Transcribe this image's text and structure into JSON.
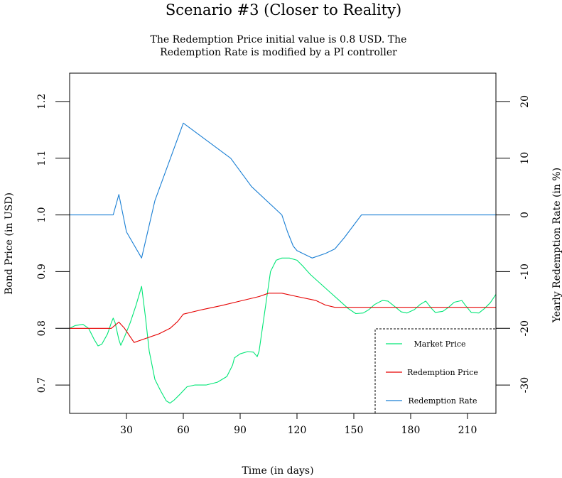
{
  "chart_data": {
    "type": "line",
    "title": "Scenario #3 (Closer to Reality)",
    "subtitle_lines": [
      "The Redemption Price initial value is 0.8 USD. The",
      "Redemption Rate is modified by a PI controller"
    ],
    "xlabel": "Time (in days)",
    "ylabel_left": "Bond Price (in USD)",
    "ylabel_right": "Yearly Redemption Rate (in %)",
    "xlim": [
      0,
      225
    ],
    "ylim_left": [
      0.65,
      1.25
    ],
    "ylim_right": [
      -35,
      25
    ],
    "x_ticks": [
      "30",
      "60",
      "90",
      "120",
      "150",
      "180",
      "210"
    ],
    "y_left_ticks": [
      "0.7",
      "0.8",
      "0.9",
      "1.0",
      "1.1",
      "1.2"
    ],
    "y_right_ticks": [
      "-30",
      "-20",
      "-10",
      "0",
      "10",
      "20"
    ],
    "legend_position": "bottom-right",
    "series": [
      {
        "name": "Market Price",
        "axis": "left",
        "color": "#00e676",
        "points": [
          [
            0,
            0.8
          ],
          [
            3,
            0.805
          ],
          [
            7,
            0.807
          ],
          [
            10,
            0.8
          ],
          [
            13,
            0.78
          ],
          [
            15,
            0.769
          ],
          [
            17,
            0.772
          ],
          [
            20,
            0.79
          ],
          [
            22,
            0.81
          ],
          [
            23,
            0.818
          ],
          [
            24,
            0.81
          ],
          [
            26,
            0.78
          ],
          [
            27,
            0.77
          ],
          [
            29,
            0.785
          ],
          [
            32,
            0.81
          ],
          [
            35,
            0.84
          ],
          [
            38,
            0.874
          ],
          [
            40,
            0.82
          ],
          [
            42,
            0.76
          ],
          [
            45,
            0.71
          ],
          [
            48,
            0.69
          ],
          [
            51,
            0.672
          ],
          [
            53,
            0.668
          ],
          [
            55,
            0.673
          ],
          [
            58,
            0.683
          ],
          [
            62,
            0.697
          ],
          [
            66,
            0.7
          ],
          [
            72,
            0.7
          ],
          [
            78,
            0.705
          ],
          [
            83,
            0.715
          ],
          [
            86,
            0.735
          ],
          [
            87,
            0.748
          ],
          [
            90,
            0.755
          ],
          [
            94,
            0.759
          ],
          [
            97,
            0.758
          ],
          [
            99,
            0.75
          ],
          [
            100,
            0.76
          ],
          [
            103,
            0.83
          ],
          [
            106,
            0.9
          ],
          [
            109,
            0.92
          ],
          [
            112,
            0.924
          ],
          [
            116,
            0.924
          ],
          [
            120,
            0.92
          ],
          [
            123,
            0.91
          ],
          [
            127,
            0.895
          ],
          [
            132,
            0.88
          ],
          [
            137,
            0.865
          ],
          [
            142,
            0.85
          ],
          [
            147,
            0.835
          ],
          [
            151,
            0.826
          ],
          [
            155,
            0.827
          ],
          [
            158,
            0.833
          ],
          [
            161,
            0.842
          ],
          [
            165,
            0.849
          ],
          [
            168,
            0.848
          ],
          [
            171,
            0.84
          ],
          [
            175,
            0.829
          ],
          [
            178,
            0.827
          ],
          [
            182,
            0.833
          ],
          [
            185,
            0.842
          ],
          [
            188,
            0.848
          ],
          [
            191,
            0.835
          ],
          [
            193,
            0.828
          ],
          [
            197,
            0.83
          ],
          [
            200,
            0.837
          ],
          [
            203,
            0.846
          ],
          [
            207,
            0.849
          ],
          [
            209,
            0.84
          ],
          [
            212,
            0.828
          ],
          [
            216,
            0.827
          ],
          [
            219,
            0.835
          ],
          [
            222,
            0.845
          ],
          [
            225,
            0.86
          ]
        ]
      },
      {
        "name": "Redemption Price",
        "axis": "left",
        "color": "#e60000",
        "points": [
          [
            0,
            0.8
          ],
          [
            22,
            0.8
          ],
          [
            26,
            0.811
          ],
          [
            29,
            0.8
          ],
          [
            34,
            0.775
          ],
          [
            40,
            0.782
          ],
          [
            47,
            0.79
          ],
          [
            53,
            0.8
          ],
          [
            57,
            0.812
          ],
          [
            60,
            0.825
          ],
          [
            70,
            0.833
          ],
          [
            80,
            0.84
          ],
          [
            90,
            0.848
          ],
          [
            100,
            0.856
          ],
          [
            105,
            0.862
          ],
          [
            112,
            0.862
          ],
          [
            120,
            0.856
          ],
          [
            130,
            0.849
          ],
          [
            135,
            0.841
          ],
          [
            140,
            0.837
          ],
          [
            225,
            0.837
          ]
        ]
      },
      {
        "name": "Redemption Rate",
        "axis": "right",
        "color": "#1a7fd4",
        "points": [
          [
            0,
            0
          ],
          [
            23,
            0
          ],
          [
            26,
            3.6
          ],
          [
            30,
            -3
          ],
          [
            38,
            -7.6
          ],
          [
            45,
            2.5
          ],
          [
            60,
            16.2
          ],
          [
            85,
            10
          ],
          [
            96,
            5
          ],
          [
            112,
            0
          ],
          [
            115,
            -3
          ],
          [
            118,
            -5.5
          ],
          [
            120,
            -6.3
          ],
          [
            128,
            -7.6
          ],
          [
            135,
            -6.8
          ],
          [
            140,
            -6
          ],
          [
            145,
            -4
          ],
          [
            154,
            0
          ],
          [
            225,
            0
          ]
        ]
      }
    ]
  }
}
